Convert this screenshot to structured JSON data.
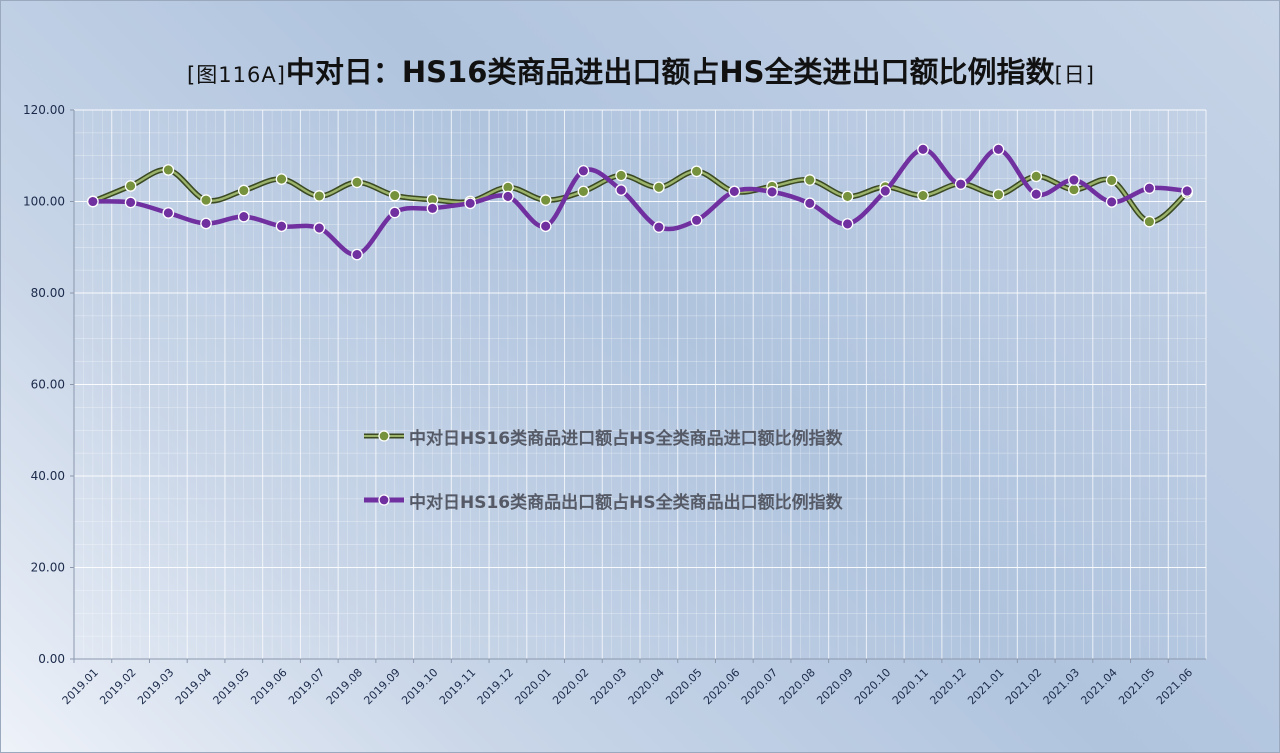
{
  "title": {
    "prefix": "[图116A]",
    "main": "中对日：HS16类商品进出口额占HS全类进出口额比例指数",
    "suffix": "[日]"
  },
  "colors": {
    "import": "#76923c",
    "import_border": "#3b4a23",
    "export": "#7030a0",
    "marker_edge": "#ffffff",
    "grid": "#ffffff",
    "axis": "#8b98ad",
    "tick_text": "#1b2a4a"
  },
  "chart_data": {
    "type": "line",
    "categories": [
      "2019.01",
      "2019.02",
      "2019.03",
      "2019.04",
      "2019.05",
      "2019.06",
      "2019.07",
      "2019.08",
      "2019.09",
      "2019.10",
      "2019.11",
      "2019.12",
      "2020.01",
      "2020.02",
      "2020.03",
      "2020.04",
      "2020.05",
      "2020.06",
      "2020.07",
      "2020.08",
      "2020.09",
      "2020.10",
      "2020.11",
      "2020.12",
      "2021.01",
      "2021.02",
      "2021.03",
      "2021.04",
      "2021.05",
      "2021.06"
    ],
    "ylim": [
      0,
      120
    ],
    "yticks": [
      "0.00",
      "20.00",
      "40.00",
      "60.00",
      "80.00",
      "100.00",
      "120.00"
    ],
    "grid": true,
    "smooth": true,
    "legend_position": "center-left",
    "series": [
      {
        "name": "中对日HS16类商品进口额占HS全类商品进口额比例指数",
        "key": "import",
        "values": [
          100.0,
          103.4,
          106.9,
          100.3,
          102.4,
          104.9,
          101.2,
          104.2,
          101.3,
          100.4,
          100.0,
          103.1,
          100.3,
          102.2,
          105.7,
          103.1,
          106.6,
          102.2,
          103.3,
          104.7,
          101.1,
          103.2,
          101.3,
          103.9,
          101.5,
          105.5,
          102.6,
          104.6,
          95.6,
          101.9
        ]
      },
      {
        "name": "中对日HS16类商品出口额占HS全类商品出口额比例指数",
        "key": "export",
        "values": [
          100.0,
          99.8,
          97.5,
          95.2,
          96.7,
          94.6,
          94.2,
          88.4,
          97.6,
          98.5,
          99.6,
          101.1,
          94.6,
          106.7,
          102.5,
          94.4,
          95.9,
          102.2,
          102.1,
          99.6,
          95.1,
          102.3,
          111.4,
          103.8,
          111.4,
          101.6,
          104.7,
          99.9,
          102.9,
          102.3
        ]
      }
    ]
  }
}
